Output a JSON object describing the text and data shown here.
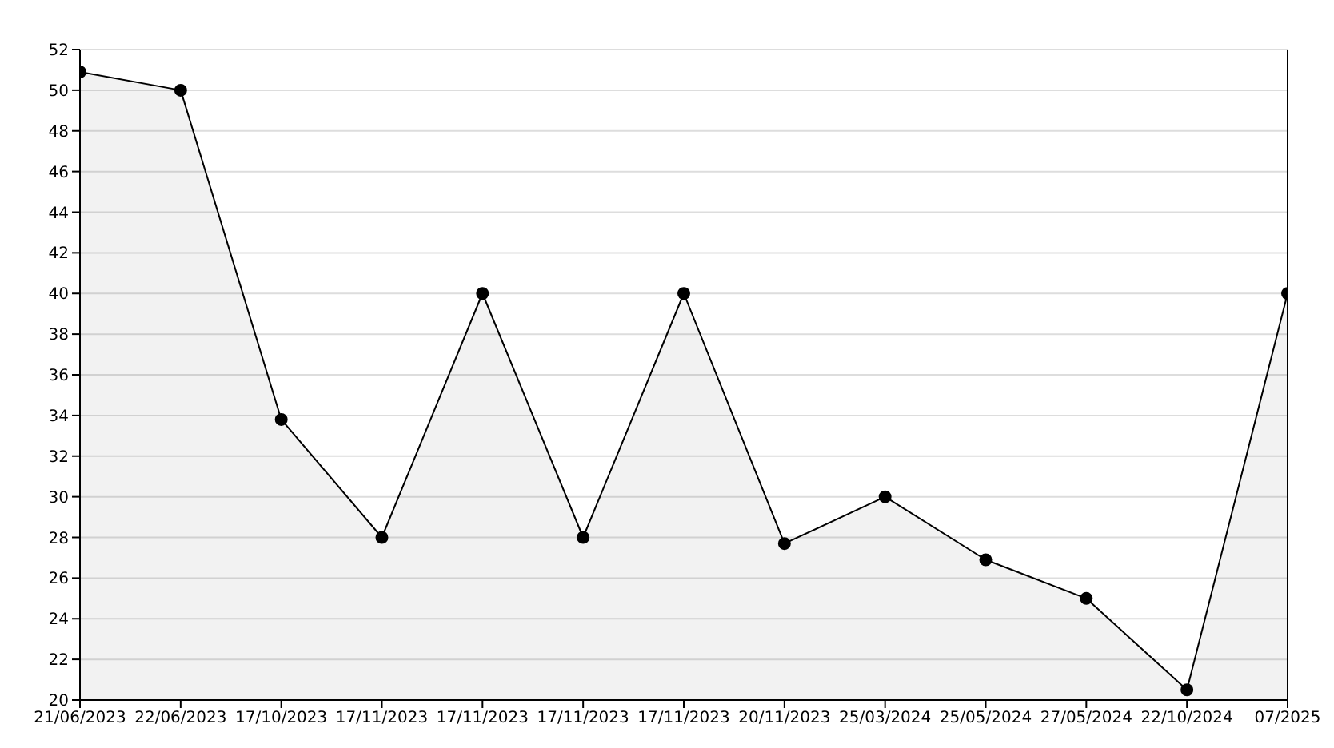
{
  "chart_data": {
    "type": "area",
    "categories": [
      "21/06/2023",
      "22/06/2023",
      "17/10/2023",
      "17/11/2023",
      "17/11/2023",
      "17/11/2023",
      "17/11/2023",
      "20/11/2023",
      "25/03/2024",
      "25/05/2024",
      "27/05/2024",
      "22/10/2024",
      "07/2025"
    ],
    "series": [
      {
        "color": "#000000",
        "values": [
          50.9,
          50,
          33.8,
          28,
          40,
          28,
          40,
          27.7,
          30,
          26.9,
          25,
          20.5,
          40
        ]
      }
    ],
    "ylim": [
      20,
      52
    ],
    "yticks": [
      20,
      22,
      24,
      26,
      28,
      30,
      32,
      34,
      36,
      38,
      40,
      42,
      44,
      46,
      48,
      50,
      52
    ],
    "grid": "y",
    "legend": false,
    "marker": "circle",
    "line_style": "solid"
  }
}
